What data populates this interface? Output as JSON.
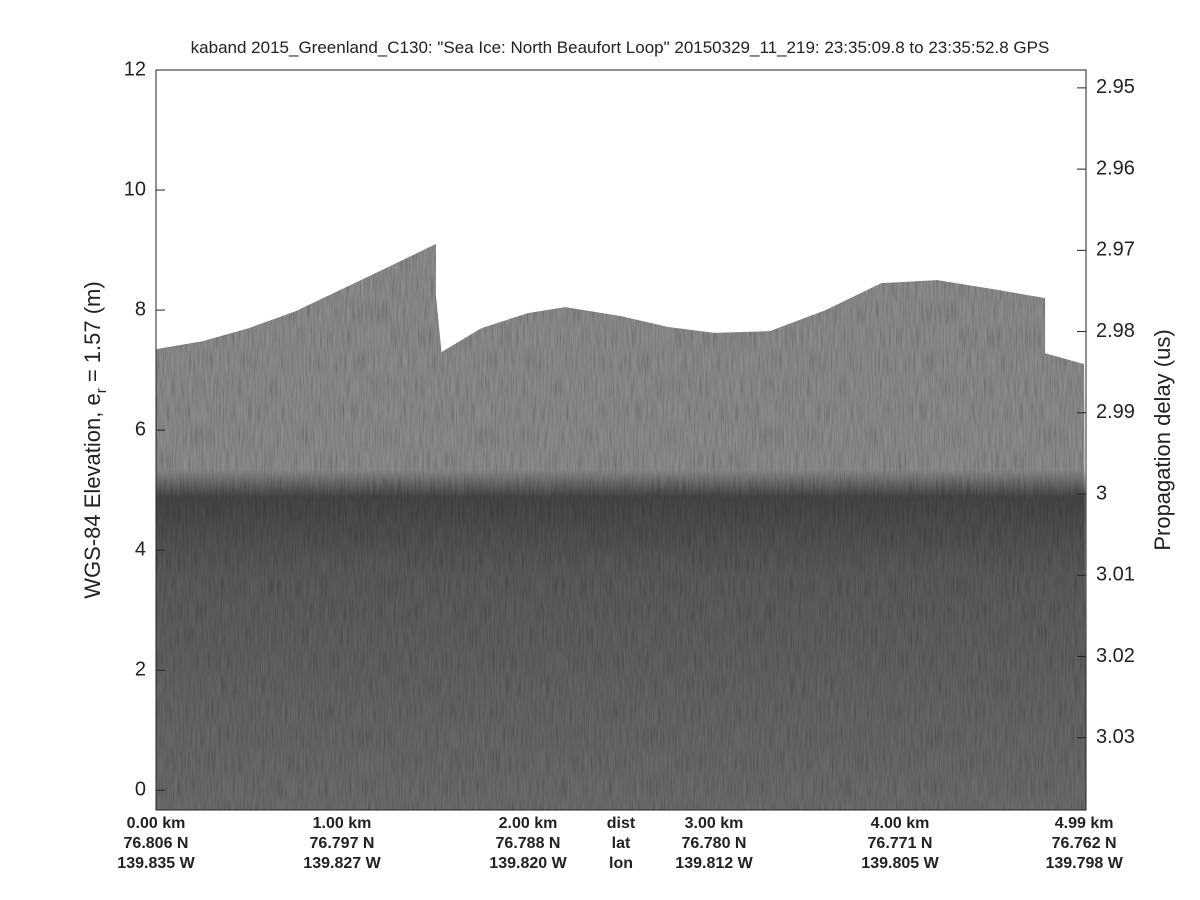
{
  "chart_data": {
    "type": "echogram",
    "title": "kaband 2015_Greenland_C130: \"Sea Ice: North Beaufort Loop\"  20150329_11_219: 23:35:09.8 to 23:35:52.8 GPS",
    "ylabel": {
      "before": "WGS-84 Elevation, e",
      "subscript": "r",
      "after": " = 1.57 (m)"
    },
    "y2label": "Propagation delay (us)",
    "xlim": [
      0,
      5.0
    ],
    "xticks": [
      {
        "value": 0,
        "label": "0.00 km"
      },
      {
        "value": 1,
        "label": "1.00 km"
      },
      {
        "value": 2,
        "label": "2.00 km"
      },
      {
        "value": 3,
        "label": "3.00 km"
      },
      {
        "value": 4,
        "label": "4.00 km"
      },
      {
        "value": 4.99,
        "label": "4.99 km"
      }
    ],
    "lat_labels": [
      "76.806 N",
      "76.797 N",
      "76.788 N",
      "76.780 N",
      "76.771 N",
      "76.762 N"
    ],
    "lon_labels": [
      "139.835 W",
      "139.827 W",
      "139.820 W",
      "139.812 W",
      "139.805 W",
      "139.798 W"
    ],
    "row_labels": [
      "dist",
      "lat",
      "lon"
    ],
    "ylim": [
      -0.33,
      12
    ],
    "yticks": [
      0,
      2,
      4,
      6,
      8,
      10,
      12
    ],
    "y2lim": [
      3.0389,
      2.9478
    ],
    "y2ticks": [
      2.95,
      2.96,
      2.97,
      2.98,
      2.99,
      3,
      3.01,
      3.02,
      3.03
    ],
    "x": [
      0,
      0.25,
      0.5,
      0.75,
      1.0,
      1.25,
      1.505,
      1.505,
      1.535,
      1.75,
      2.0,
      2.2,
      2.5,
      2.75,
      3.0,
      3.3,
      3.6,
      3.9,
      4.2,
      4.5,
      4.78,
      4.78,
      4.99
    ],
    "values": [
      7.35,
      7.48,
      7.7,
      7.98,
      8.35,
      8.72,
      9.1,
      8.25,
      7.3,
      7.7,
      7.95,
      8.05,
      7.9,
      7.72,
      7.62,
      7.65,
      8.0,
      8.45,
      8.5,
      8.35,
      8.2,
      7.28,
      7.1
    ],
    "color": "#8a8a8a"
  }
}
